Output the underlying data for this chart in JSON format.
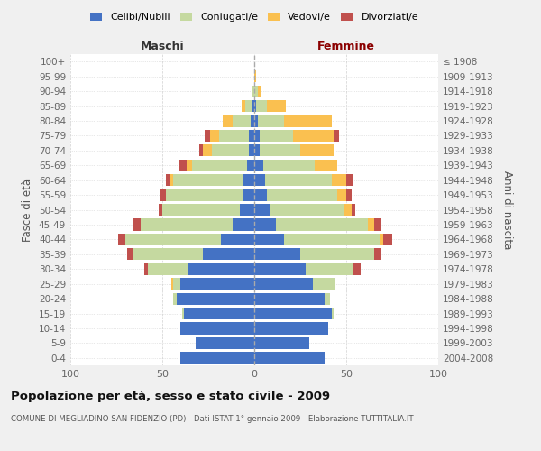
{
  "age_groups": [
    "0-4",
    "5-9",
    "10-14",
    "15-19",
    "20-24",
    "25-29",
    "30-34",
    "35-39",
    "40-44",
    "45-49",
    "50-54",
    "55-59",
    "60-64",
    "65-69",
    "70-74",
    "75-79",
    "80-84",
    "85-89",
    "90-94",
    "95-99",
    "100+"
  ],
  "birth_years": [
    "2004-2008",
    "1999-2003",
    "1994-1998",
    "1989-1993",
    "1984-1988",
    "1979-1983",
    "1974-1978",
    "1969-1973",
    "1964-1968",
    "1959-1963",
    "1954-1958",
    "1949-1953",
    "1944-1948",
    "1939-1943",
    "1934-1938",
    "1929-1933",
    "1924-1928",
    "1919-1923",
    "1914-1918",
    "1909-1913",
    "≤ 1908"
  ],
  "maschi_celibe": [
    40,
    32,
    40,
    38,
    42,
    40,
    36,
    28,
    18,
    12,
    8,
    6,
    6,
    4,
    3,
    3,
    2,
    1,
    0,
    0,
    0
  ],
  "maschi_coniugato": [
    0,
    0,
    0,
    1,
    2,
    4,
    22,
    38,
    52,
    50,
    42,
    42,
    38,
    30,
    20,
    16,
    10,
    4,
    1,
    0,
    0
  ],
  "maschi_vedovo": [
    0,
    0,
    0,
    0,
    0,
    1,
    0,
    0,
    0,
    0,
    0,
    0,
    2,
    3,
    5,
    5,
    5,
    2,
    0,
    0,
    0
  ],
  "maschi_divorziato": [
    0,
    0,
    0,
    0,
    0,
    0,
    2,
    3,
    4,
    4,
    2,
    3,
    2,
    4,
    2,
    3,
    0,
    0,
    0,
    0,
    0
  ],
  "femmine_nubile": [
    38,
    30,
    40,
    42,
    38,
    32,
    28,
    25,
    16,
    12,
    9,
    7,
    6,
    5,
    3,
    3,
    2,
    1,
    0,
    0,
    0
  ],
  "femmine_coniugata": [
    0,
    0,
    0,
    1,
    3,
    12,
    26,
    40,
    52,
    50,
    40,
    38,
    36,
    28,
    22,
    18,
    14,
    6,
    2,
    0,
    0
  ],
  "femmine_vedova": [
    0,
    0,
    0,
    0,
    0,
    0,
    0,
    0,
    2,
    3,
    4,
    5,
    8,
    12,
    18,
    22,
    26,
    10,
    2,
    1,
    0
  ],
  "femmine_divorziata": [
    0,
    0,
    0,
    0,
    0,
    0,
    4,
    4,
    5,
    4,
    2,
    3,
    4,
    0,
    0,
    3,
    0,
    0,
    0,
    0,
    0
  ],
  "colors": {
    "celibe": "#4472C4",
    "coniugato": "#C5D9A0",
    "vedovo": "#FAC050",
    "divorziato": "#C0504D"
  },
  "xlim": 100,
  "title": "Popolazione per età, sesso e stato civile - 2009",
  "subtitle": "COMUNE DI MEGLIADINO SAN FIDENZIO (PD) - Dati ISTAT 1° gennaio 2009 - Elaborazione TUTTITALIA.IT",
  "ylabel_left": "Fasce di età",
  "ylabel_right": "Anni di nascita",
  "legend_labels": [
    "Celibi/Nubili",
    "Coniugati/e",
    "Vedovi/e",
    "Divorziati/e"
  ],
  "bg_color": "#f0f0f0",
  "plot_bg": "#ffffff",
  "grid_color": "#cccccc",
  "maschi_header": "Maschi",
  "femmine_header": "Femmine",
  "maschi_color": "#333333",
  "femmine_color": "#8B0000"
}
